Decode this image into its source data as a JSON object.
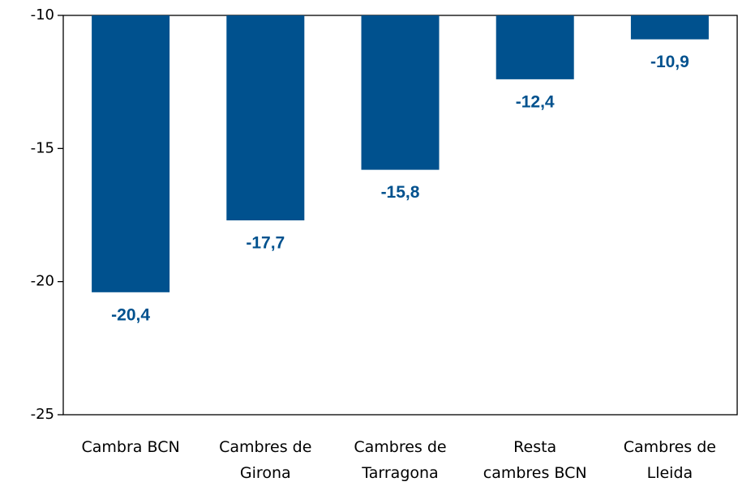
{
  "chart_data": {
    "type": "bar",
    "categories": [
      "Cambra BCN",
      "Cambres de Girona",
      "Cambres de Tarragona",
      "Resta cambres BCN",
      "Cambres de Lleida"
    ],
    "values": [
      -20.4,
      -17.7,
      -15.8,
      -12.4,
      -10.9
    ],
    "value_labels": [
      "-20,4",
      "-17,7",
      "-15,8",
      "-12,4",
      "-10,9"
    ],
    "color": "#00518e",
    "ylim": [
      -25,
      -10
    ],
    "yticks": [
      -25,
      -20,
      -15,
      -10
    ],
    "grid": false
  }
}
